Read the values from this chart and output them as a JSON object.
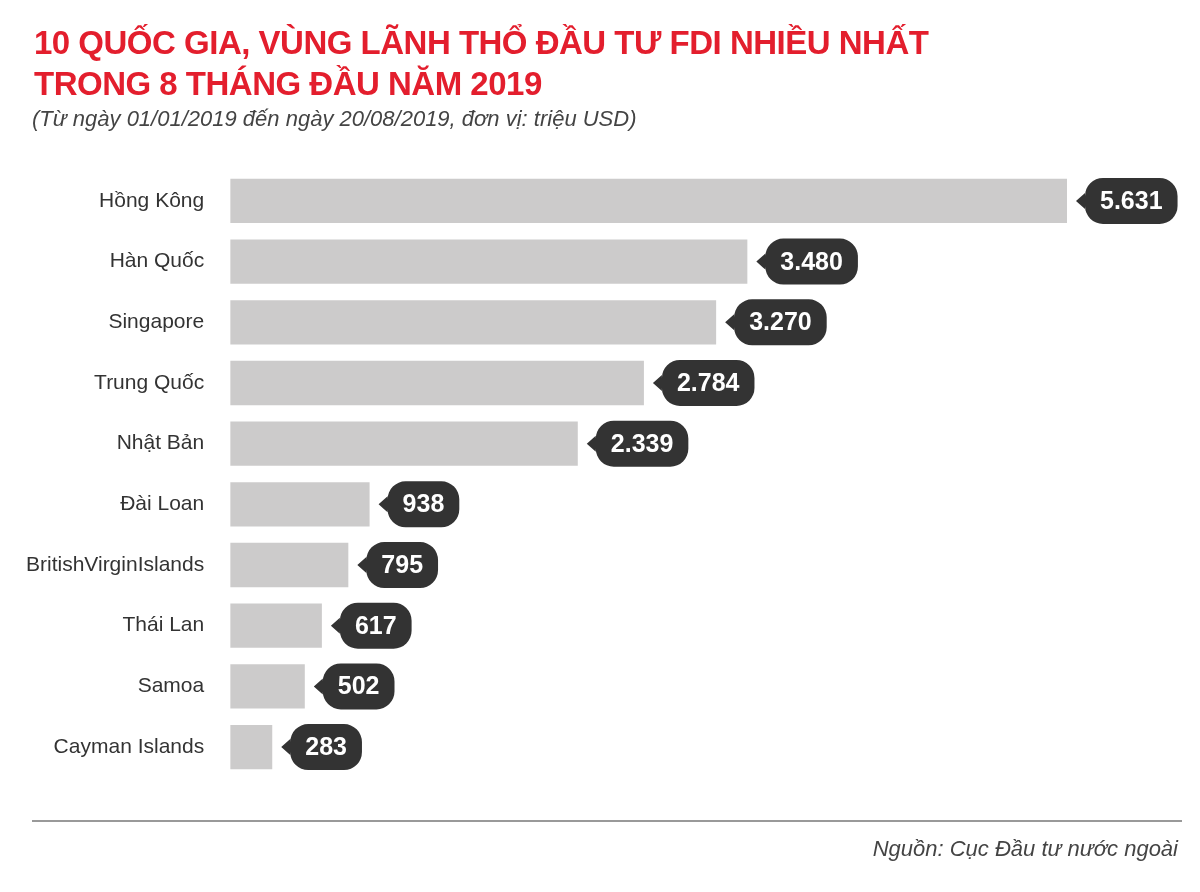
{
  "chart_data": {
    "type": "bar",
    "orientation": "horizontal",
    "title": "10 QUỐC GIA, VÙNG LÃNH THỔ ĐẦU TƯ FDI NHIỀU NHẤT\nTRONG 8 THÁNG ĐẦU NĂM 2019",
    "subtitle": "(Từ ngày 01/01/2019 đến ngày 20/08/2019, đơn vị: triệu USD)",
    "categories": [
      "Hồng Kông",
      "Hàn Quốc",
      "Singapore",
      "Trung Quốc",
      "Nhật Bản",
      "Đài Loan",
      "BritishVirginIslands",
      "Thái Lan",
      "Samoa",
      "Cayman Islands"
    ],
    "values": [
      5631,
      3480,
      3270,
      2784,
      2339,
      938,
      795,
      617,
      502,
      283
    ],
    "value_labels": [
      "5.631",
      "3.480",
      "3.270",
      "2.784",
      "2.339",
      "938",
      "795",
      "617",
      "502",
      "283"
    ],
    "color": "#cccbcb",
    "annotations": [
      "Nguồn: Cục Đầu tư nước ngoài"
    ]
  }
}
